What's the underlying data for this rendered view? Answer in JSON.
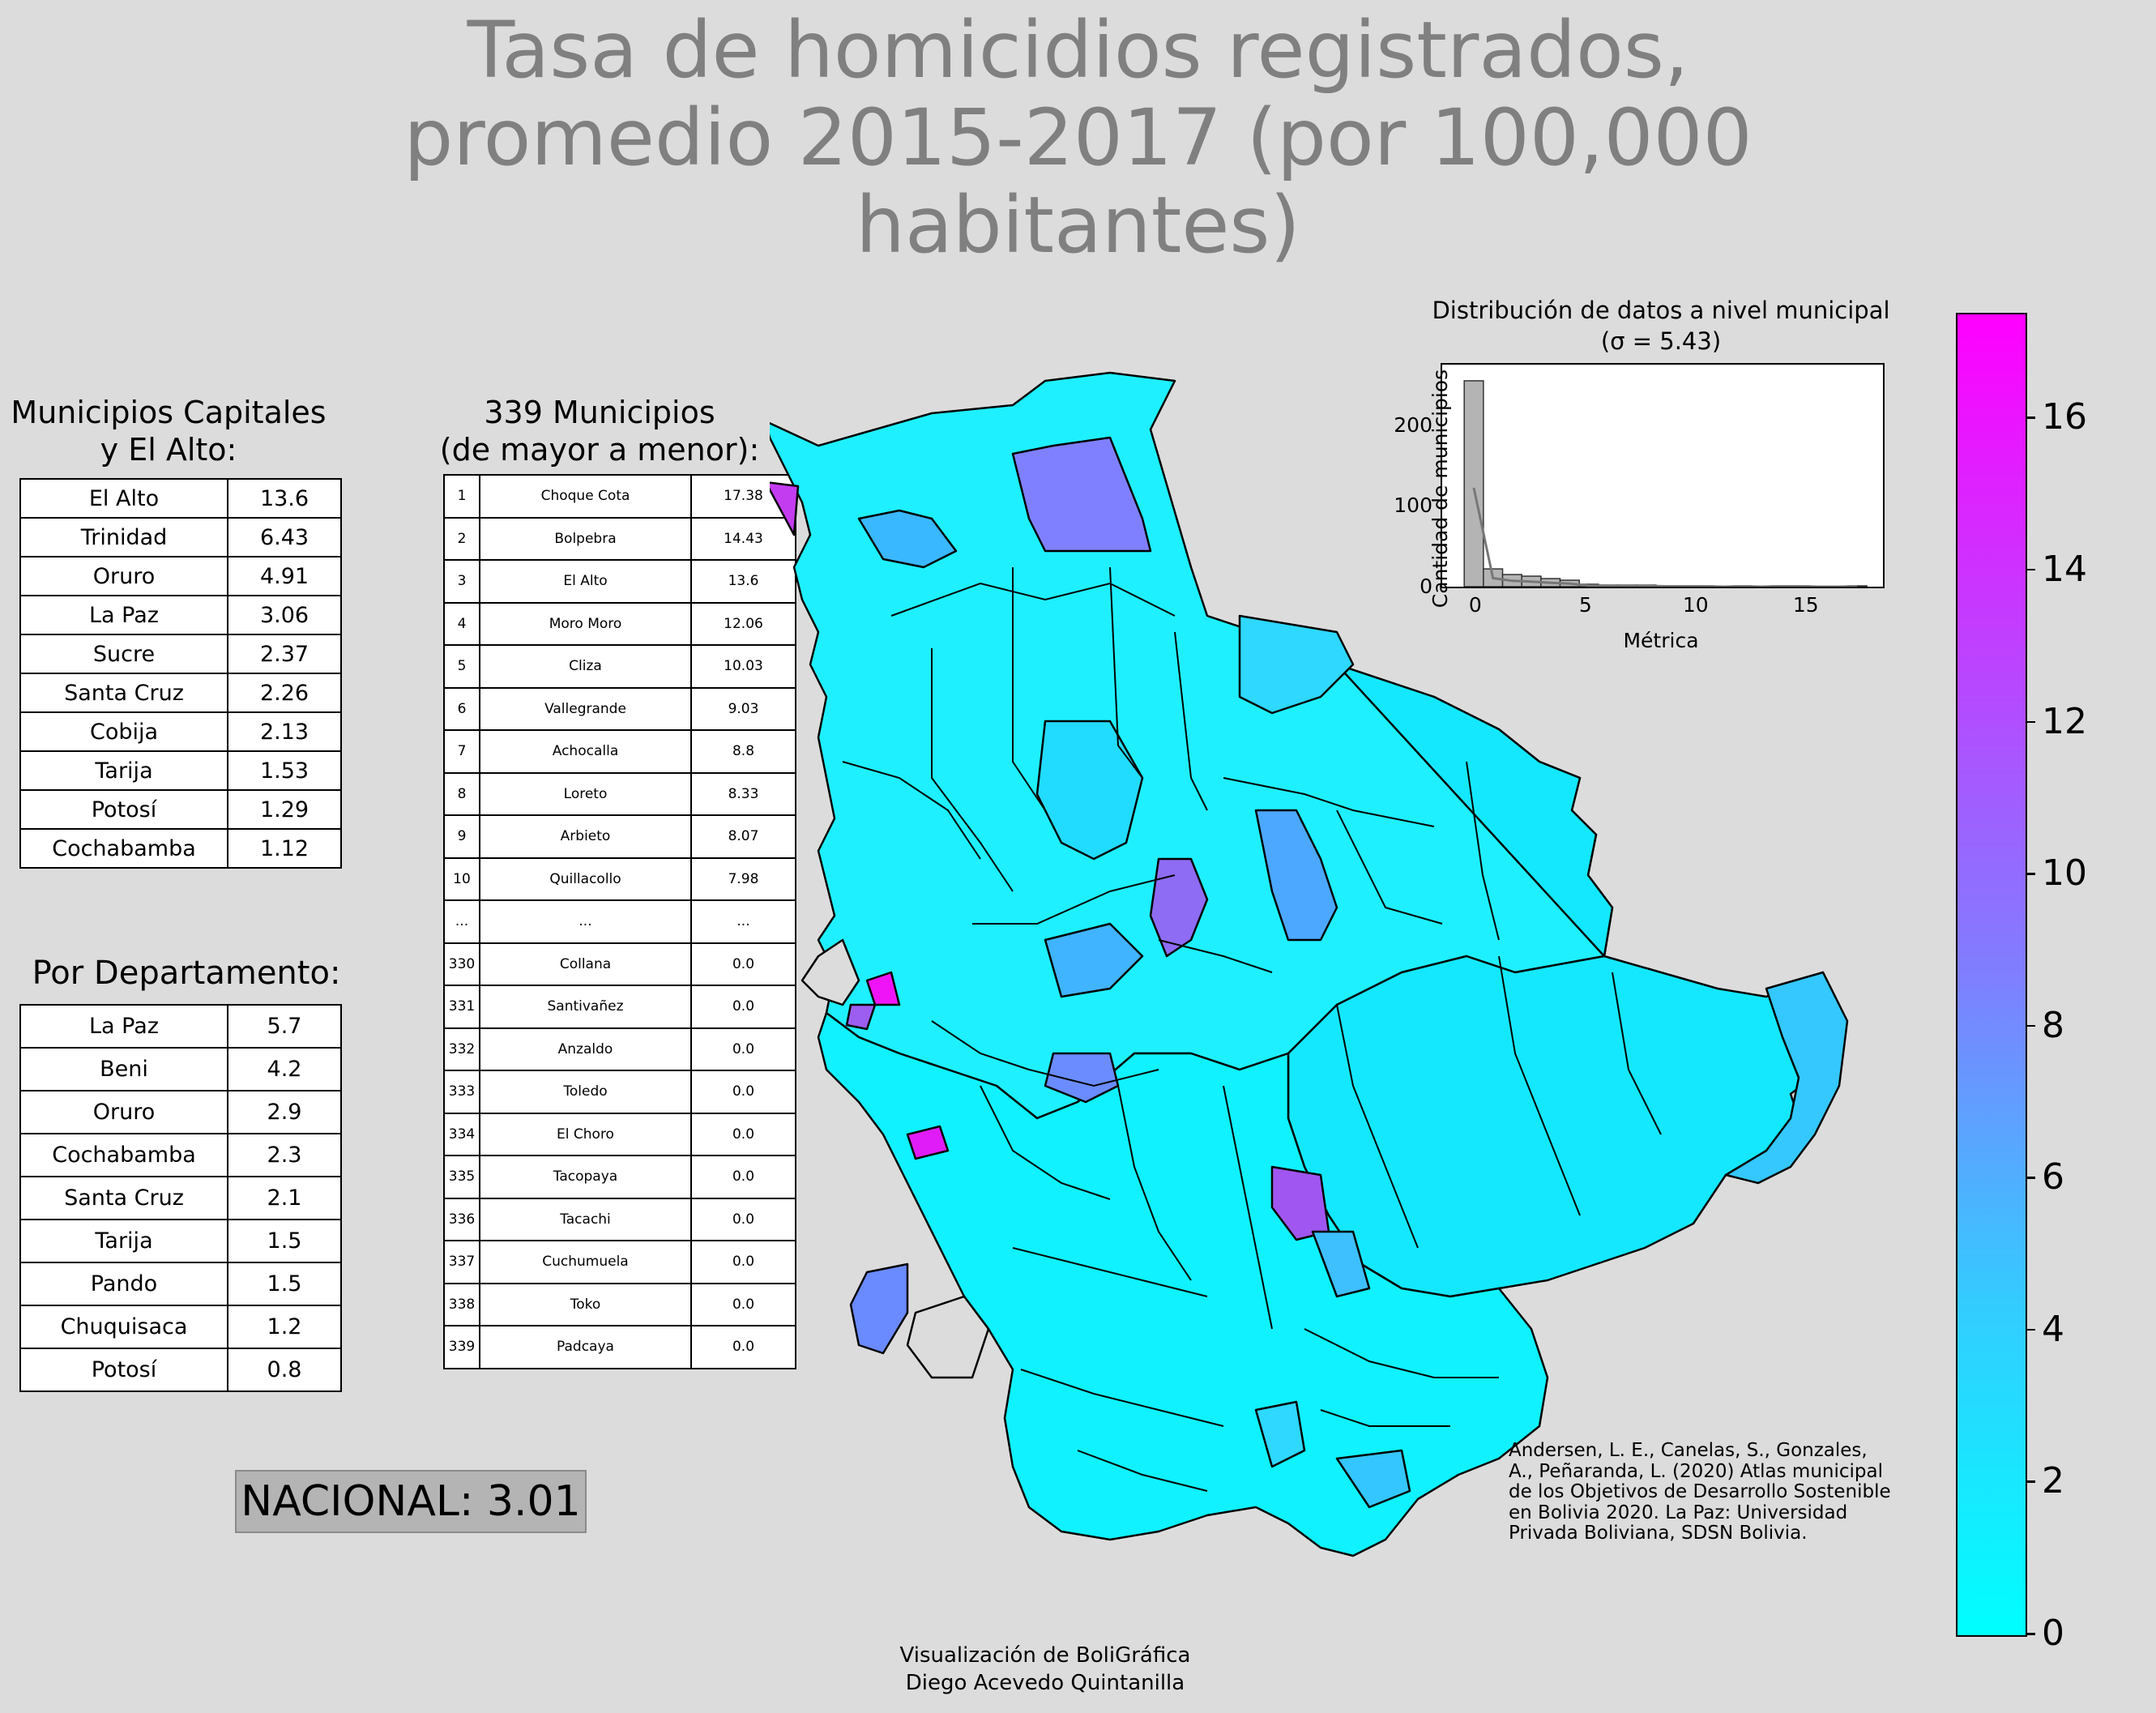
{
  "title": [
    "Tasa de homicidios registrados,",
    "promedio 2015-2017 (por 100,000",
    "habitantes)"
  ],
  "capitals": {
    "heading": [
      "Municipios Capitales",
      "y El Alto:"
    ],
    "rows": [
      {
        "name": "El Alto",
        "value": "13.6"
      },
      {
        "name": "Trinidad",
        "value": "6.43"
      },
      {
        "name": "Oruro",
        "value": "4.91"
      },
      {
        "name": "La Paz",
        "value": "3.06"
      },
      {
        "name": "Sucre",
        "value": "2.37"
      },
      {
        "name": "Santa Cruz",
        "value": "2.26"
      },
      {
        "name": "Cobija",
        "value": "2.13"
      },
      {
        "name": "Tarija",
        "value": "1.53"
      },
      {
        "name": "Potosí",
        "value": "1.29"
      },
      {
        "name": "Cochabamba",
        "value": "1.12"
      }
    ]
  },
  "departments": {
    "heading": "Por Departamento:",
    "rows": [
      {
        "name": "La Paz",
        "value": "5.7"
      },
      {
        "name": "Beni",
        "value": "4.2"
      },
      {
        "name": "Oruro",
        "value": "2.9"
      },
      {
        "name": "Cochabamba",
        "value": "2.3"
      },
      {
        "name": "Santa Cruz",
        "value": "2.1"
      },
      {
        "name": "Tarija",
        "value": "1.5"
      },
      {
        "name": "Pando",
        "value": "1.5"
      },
      {
        "name": "Chuquisaca",
        "value": "1.2"
      },
      {
        "name": "Potosí",
        "value": "0.8"
      }
    ]
  },
  "ranking": {
    "heading": [
      "339 Municipios",
      "(de mayor a menor):"
    ],
    "rows": [
      {
        "rank": "1",
        "name": "Choque Cota",
        "value": "17.38"
      },
      {
        "rank": "2",
        "name": "Bolpebra",
        "value": "14.43"
      },
      {
        "rank": "3",
        "name": "El Alto",
        "value": "13.6"
      },
      {
        "rank": "4",
        "name": "Moro Moro",
        "value": "12.06"
      },
      {
        "rank": "5",
        "name": "Cliza",
        "value": "10.03"
      },
      {
        "rank": "6",
        "name": "Vallegrande",
        "value": "9.03"
      },
      {
        "rank": "7",
        "name": "Achocalla",
        "value": "8.8"
      },
      {
        "rank": "8",
        "name": "Loreto",
        "value": "8.33"
      },
      {
        "rank": "9",
        "name": "Arbieto",
        "value": "8.07"
      },
      {
        "rank": "10",
        "name": "Quillacollo",
        "value": "7.98"
      },
      {
        "rank": "...",
        "name": "...",
        "value": "..."
      },
      {
        "rank": "330",
        "name": "Collana",
        "value": "0.0"
      },
      {
        "rank": "331",
        "name": "Santivañez",
        "value": "0.0"
      },
      {
        "rank": "332",
        "name": "Anzaldo",
        "value": "0.0"
      },
      {
        "rank": "333",
        "name": "Toledo",
        "value": "0.0"
      },
      {
        "rank": "334",
        "name": "El Choro",
        "value": "0.0"
      },
      {
        "rank": "335",
        "name": "Tacopaya",
        "value": "0.0"
      },
      {
        "rank": "336",
        "name": "Tacachi",
        "value": "0.0"
      },
      {
        "rank": "337",
        "name": "Cuchumuela",
        "value": "0.0"
      },
      {
        "rank": "338",
        "name": "Toko",
        "value": "0.0"
      },
      {
        "rank": "339",
        "name": "Padcaya",
        "value": "0.0"
      }
    ]
  },
  "nacional": "NACIONAL: 3.01",
  "histogram": {
    "title": [
      "Distribución de datos a nivel municipal",
      "(σ = 5.43)"
    ],
    "xlabel": "Métrica",
    "ylabel": "Cantidad de municipios",
    "xticks": [
      "0",
      "5",
      "10",
      "15"
    ],
    "yticks": [
      "0",
      "100",
      "200"
    ]
  },
  "chart_data": {
    "type": "bar",
    "title": "Distribución de datos a nivel municipal (σ = 5.43)",
    "xlabel": "Métrica",
    "ylabel": "Cantidad de municipios",
    "bin_width": 0.87,
    "bin_starts": [
      -0.5,
      0.37,
      1.24,
      2.11,
      2.98,
      3.85,
      4.72,
      5.59,
      6.46,
      7.33,
      8.2,
      9.07,
      9.94,
      10.81,
      11.68,
      12.55,
      13.42,
      14.29,
      15.16,
      16.03,
      16.9
    ],
    "values": [
      255,
      22,
      15,
      13,
      10,
      8,
      3,
      2,
      2,
      2,
      1,
      1,
      1,
      0,
      1,
      0,
      1,
      1,
      0,
      0,
      1
    ],
    "xlim": [
      -1.5,
      18.5
    ],
    "ylim": [
      0,
      275
    ]
  },
  "colorbar": {
    "ticks": [
      "0",
      "2",
      "4",
      "6",
      "8",
      "10",
      "12",
      "14",
      "16"
    ],
    "min": 0,
    "max": 17.38,
    "colors": {
      "low": "#00ffff",
      "high": "#ff00ff"
    }
  },
  "citation": [
    "Andersen, L. E., Canelas, S., Gonzales,",
    "A., Peñaranda, L. (2020) Atlas municipal",
    "de los Objetivos de Desarrollo Sostenible",
    "en Bolivia 2020. La Paz: Universidad",
    "Privada Boliviana, SDSN Bolivia."
  ],
  "credits": [
    "Visualización de BoliGráfica",
    "Diego Acevedo Quintanilla"
  ]
}
